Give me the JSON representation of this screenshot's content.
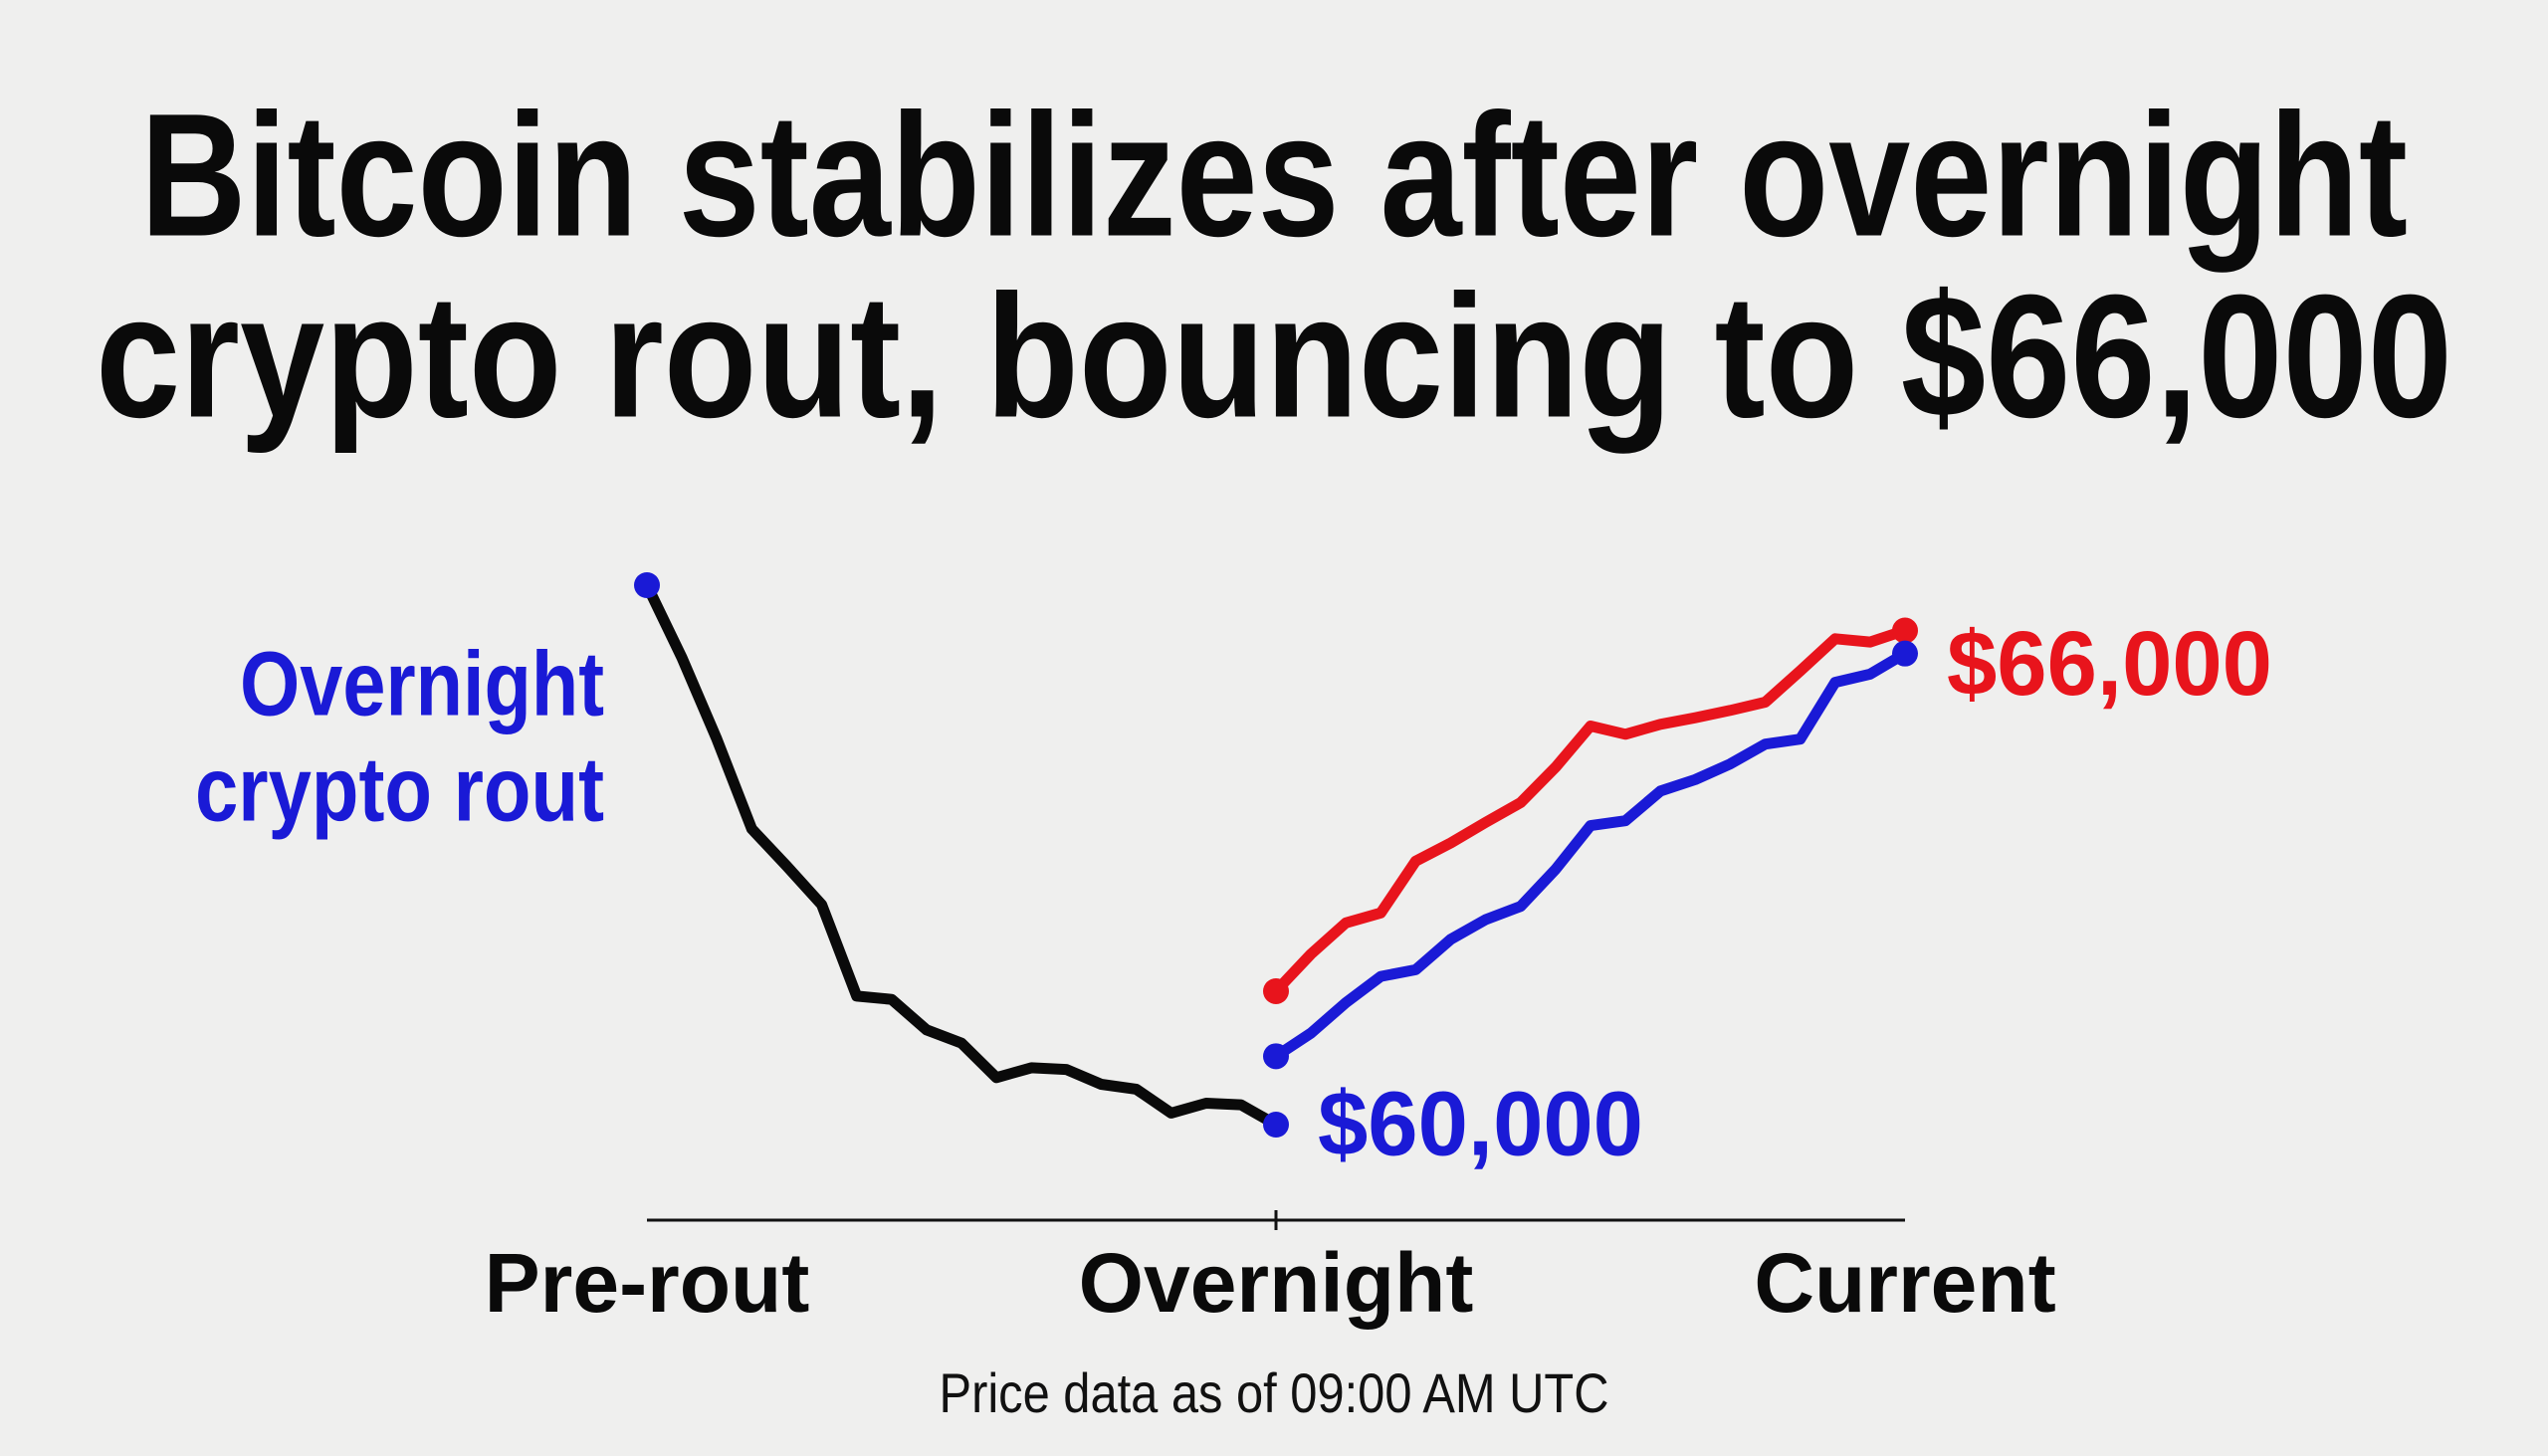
{
  "chart_data": {
    "type": "line",
    "title": [
      "Bitcoin stabilizes after overnight",
      "crypto rout, bouncing to $66,000"
    ],
    "categories": [
      "Pre-rout",
      null,
      null,
      null,
      null,
      null,
      null,
      null,
      null,
      null,
      null,
      null,
      null,
      null,
      null,
      null,
      null,
      null,
      "Overnight",
      null,
      null,
      null,
      null,
      null,
      null,
      null,
      null,
      null,
      null,
      null,
      null,
      null,
      null,
      null,
      null,
      null,
      "Current"
    ],
    "series": [
      {
        "color": "#0a0a0a",
        "marker_color": "#1a1ad6",
        "values": [
          66550,
          65670,
          64680,
          63590,
          63140,
          62670,
          61560,
          61520,
          61150,
          60990,
          60570,
          60690,
          60670,
          60490,
          60430,
          60140,
          60260,
          60240,
          60000,
          null,
          null,
          null,
          null,
          null,
          null,
          null,
          null,
          null,
          null,
          null,
          null,
          null,
          null,
          null,
          null,
          null,
          null
        ]
      },
      {
        "color": "#e8141c",
        "marker_color": "#e8141c",
        "values": [
          null,
          null,
          null,
          null,
          null,
          null,
          null,
          null,
          null,
          null,
          null,
          null,
          null,
          null,
          null,
          null,
          null,
          null,
          61620,
          62070,
          62450,
          62570,
          63200,
          63420,
          63670,
          63910,
          64340,
          64840,
          64740,
          64860,
          64940,
          65030,
          65130,
          65510,
          65900,
          65860,
          66000
        ]
      },
      {
        "color": "#1a1ad6",
        "marker_color": "#1a1ad6",
        "values": [
          null,
          null,
          null,
          null,
          null,
          null,
          null,
          null,
          null,
          null,
          null,
          null,
          null,
          null,
          null,
          null,
          null,
          null,
          60830,
          61110,
          61480,
          61800,
          61880,
          62250,
          62490,
          62650,
          63100,
          63630,
          63690,
          64050,
          64190,
          64380,
          64620,
          64680,
          65370,
          65470,
          65720
        ]
      }
    ],
    "annotations": [
      {
        "text": [
          "Overnight",
          "crypto rout"
        ],
        "color": "#1a1ad6"
      },
      {
        "text": "$60,000",
        "color": "#1a1ad6"
      },
      {
        "text": "$66,000",
        "color": "#e8141c"
      }
    ],
    "note": "Price data as of 09:00 AM UTC"
  }
}
